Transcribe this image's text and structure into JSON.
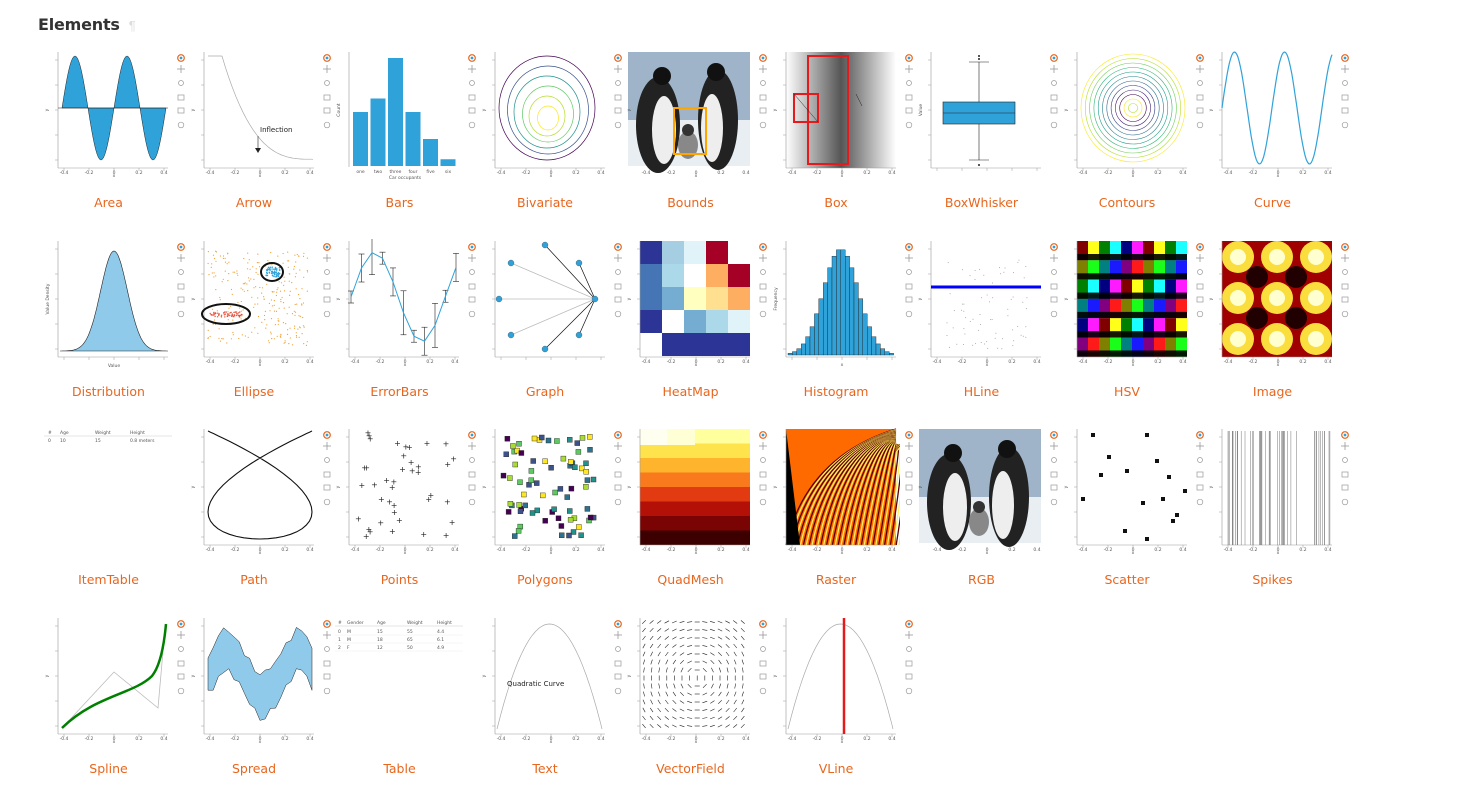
{
  "page": {
    "title": "Elements",
    "anchor_icon": "pilcrow-icon",
    "link_color": "#e8661e"
  },
  "elements": [
    {
      "label": "Area",
      "plot": "area"
    },
    {
      "label": "Arrow",
      "plot": "arrow"
    },
    {
      "label": "Bars",
      "plot": "bars"
    },
    {
      "label": "Bivariate",
      "plot": "bivariate"
    },
    {
      "label": "Bounds",
      "plot": "bounds"
    },
    {
      "label": "Box",
      "plot": "box"
    },
    {
      "label": "BoxWhisker",
      "plot": "boxwhisker"
    },
    {
      "label": "Contours",
      "plot": "contours"
    },
    {
      "label": "Curve",
      "plot": "curve"
    },
    {
      "label": "Distribution",
      "plot": "distribution"
    },
    {
      "label": "Ellipse",
      "plot": "ellipse"
    },
    {
      "label": "ErrorBars",
      "plot": "errorbars"
    },
    {
      "label": "Graph",
      "plot": "graph"
    },
    {
      "label": "HeatMap",
      "plot": "heatmap"
    },
    {
      "label": "Histogram",
      "plot": "histogram"
    },
    {
      "label": "HLine",
      "plot": "hline"
    },
    {
      "label": "HSV",
      "plot": "hsv"
    },
    {
      "label": "Image",
      "plot": "image"
    },
    {
      "label": "ItemTable",
      "plot": "itemtable"
    },
    {
      "label": "Path",
      "plot": "path"
    },
    {
      "label": "Points",
      "plot": "points"
    },
    {
      "label": "Polygons",
      "plot": "polygons"
    },
    {
      "label": "QuadMesh",
      "plot": "quadmesh"
    },
    {
      "label": "Raster",
      "plot": "raster"
    },
    {
      "label": "RGB",
      "plot": "rgb"
    },
    {
      "label": "Scatter",
      "plot": "scatter"
    },
    {
      "label": "Spikes",
      "plot": "spikes"
    },
    {
      "label": "Spline",
      "plot": "spline"
    },
    {
      "label": "Spread",
      "plot": "spread"
    },
    {
      "label": "Table",
      "plot": "table"
    },
    {
      "label": "Text",
      "plot": "text"
    },
    {
      "label": "VectorField",
      "plot": "vectorfield"
    },
    {
      "label": "VLine",
      "plot": "vline"
    }
  ],
  "thumb_text": {
    "arrow_annotation": "Inflection",
    "text_annotation": "Quadratic Curve",
    "bars_xlabel": "Car occupants",
    "bars_ylabel": "Count",
    "bars_categories": [
      "one",
      "two",
      "three",
      "four",
      "five",
      "six"
    ],
    "distribution_xlabel": "Value",
    "distribution_ylabel": "Value Density",
    "histogram_ylabel": "Frequency",
    "boxwhisker_ylabel": "Value",
    "table_headers": [
      "Gender",
      "Age",
      "Weight",
      "Height"
    ],
    "table_rows": [
      [
        "M",
        "15",
        "55",
        "4.4"
      ],
      [
        "M",
        "18",
        "65",
        "6.1"
      ],
      [
        "F",
        "12",
        "50",
        "4.9"
      ]
    ],
    "itemtable_headers": [
      "Age",
      "Weight",
      "Height"
    ],
    "itemtable_values": [
      "10",
      "15",
      "0.8 meters"
    ]
  },
  "colors": {
    "bokeh_blue": "#30a2da",
    "light_blue": "#8fcaea",
    "accent_red": "#e41a1c",
    "hline_blue": "#0000ff",
    "spline_green": "#008000",
    "bounds_orange": "#ffa500"
  }
}
